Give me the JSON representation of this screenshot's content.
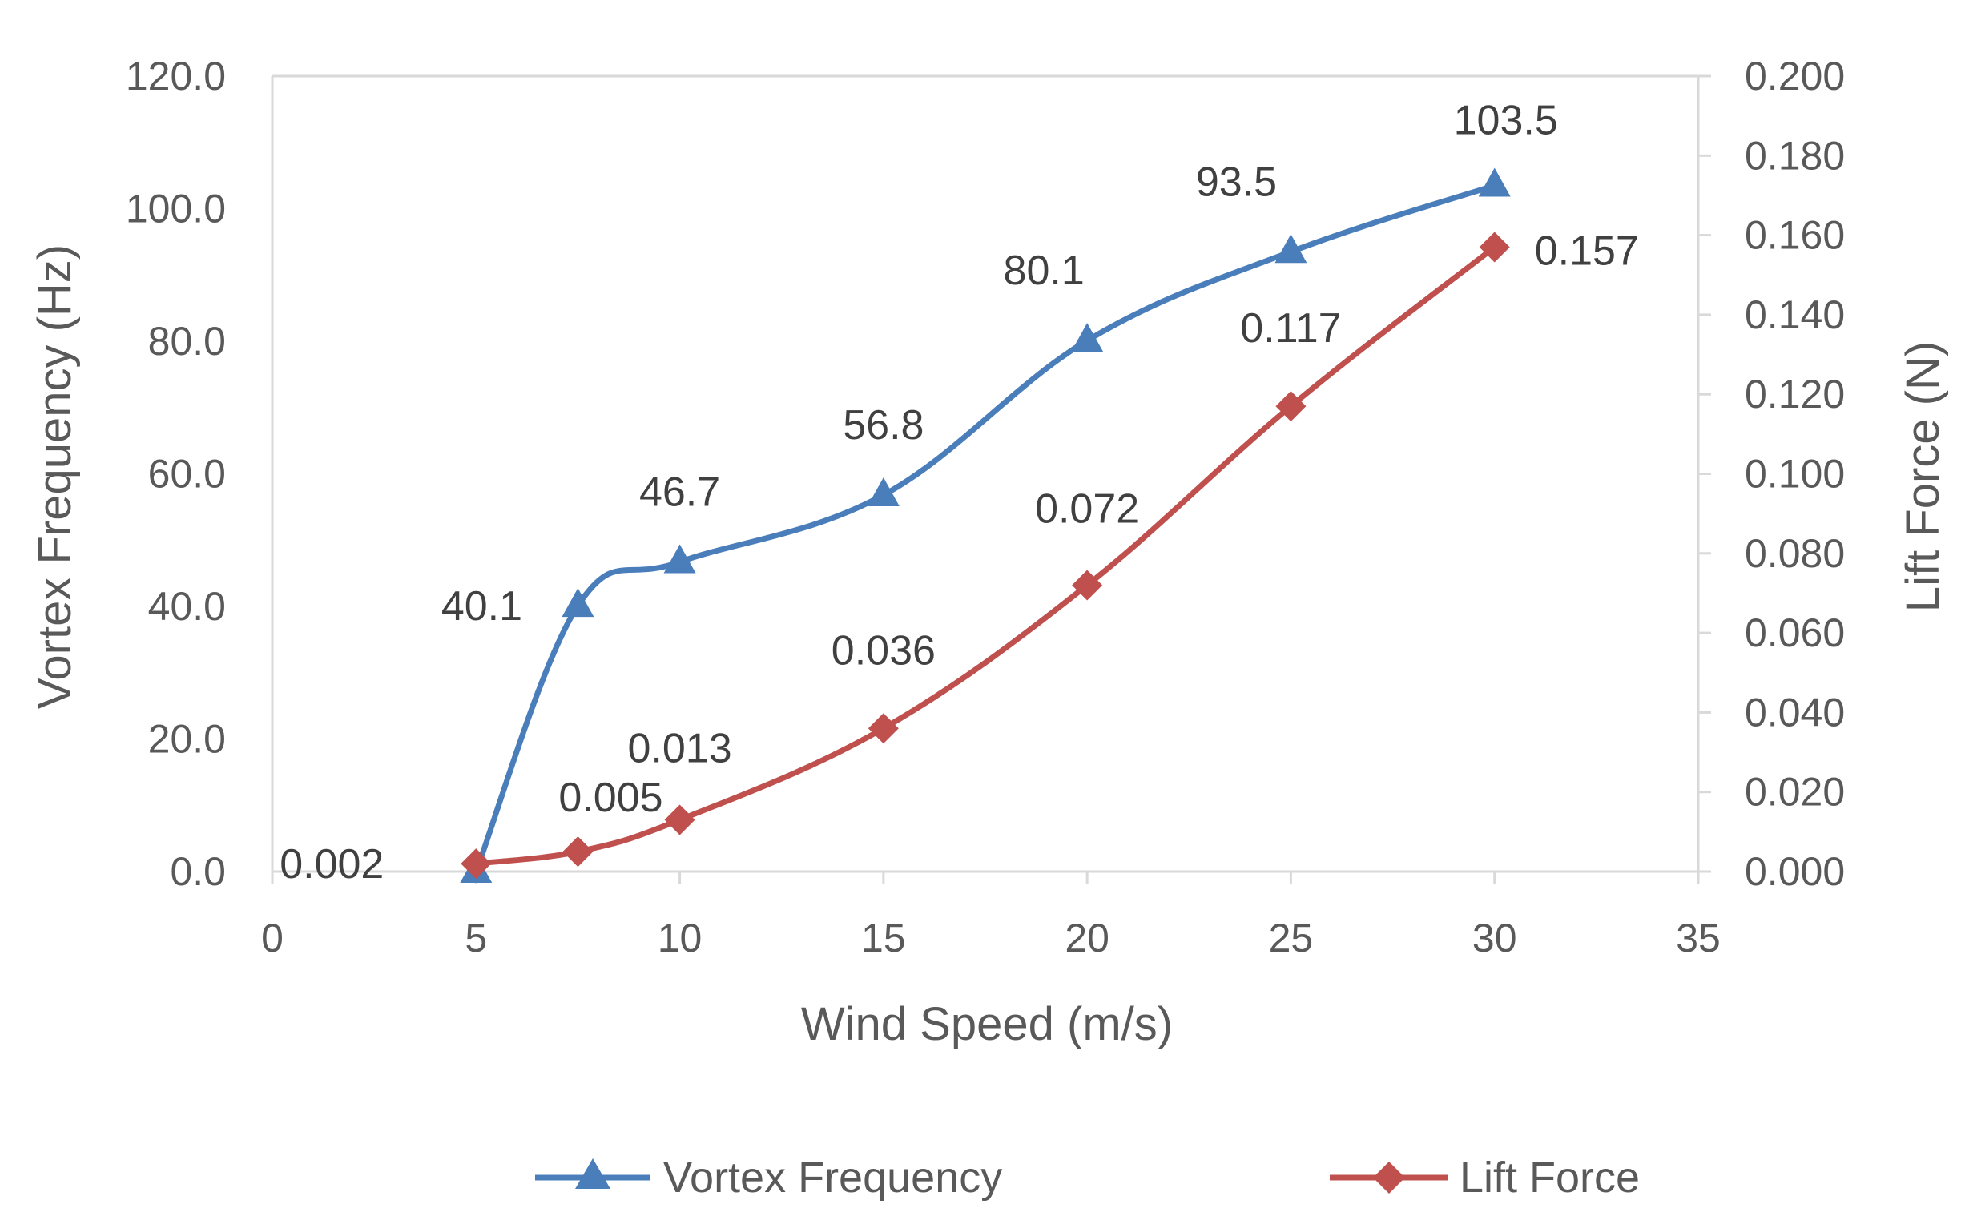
{
  "chart_data": {
    "type": "line",
    "title": "",
    "xlabel": "Wind Speed (m/s)",
    "ylabel": "Vortex Frequency (Hz)",
    "y2label": "Lift Force (N)",
    "xlim": [
      0,
      35
    ],
    "ylim": [
      0,
      120
    ],
    "y2lim": [
      0,
      0.2
    ],
    "x_ticks": [
      "0",
      "5",
      "10",
      "15",
      "20",
      "25",
      "30",
      "35"
    ],
    "y_ticks": [
      "0.0",
      "20.0",
      "40.0",
      "60.0",
      "80.0",
      "100.0",
      "120.0"
    ],
    "y2_ticks": [
      "0.000",
      "0.020",
      "0.040",
      "0.060",
      "0.080",
      "0.100",
      "0.120",
      "0.140",
      "0.160",
      "0.180",
      "0.200"
    ],
    "grid": false,
    "legend_position": "bottom",
    "series": [
      {
        "name": "Vortex Frequency",
        "axis": "left",
        "color": "#4a7ebb",
        "marker": "triangle",
        "x": [
          5,
          7.5,
          10,
          15,
          20,
          25,
          30
        ],
        "values": [
          0,
          40.1,
          46.7,
          56.8,
          80.1,
          93.5,
          103.5
        ],
        "labels": [
          "",
          "40.1",
          "46.7",
          "56.8",
          "80.1",
          "93.5",
          "103.5"
        ]
      },
      {
        "name": "Lift Force",
        "axis": "right",
        "color": "#c0504d",
        "marker": "diamond",
        "x": [
          5,
          7.5,
          10,
          15,
          20,
          25,
          30
        ],
        "values": [
          0.002,
          0.005,
          0.013,
          0.036,
          0.072,
          0.117,
          0.157
        ],
        "labels": [
          "0.002",
          "0.005",
          "0.013",
          "0.036",
          "0.072",
          "0.117",
          "0.157"
        ]
      }
    ]
  }
}
